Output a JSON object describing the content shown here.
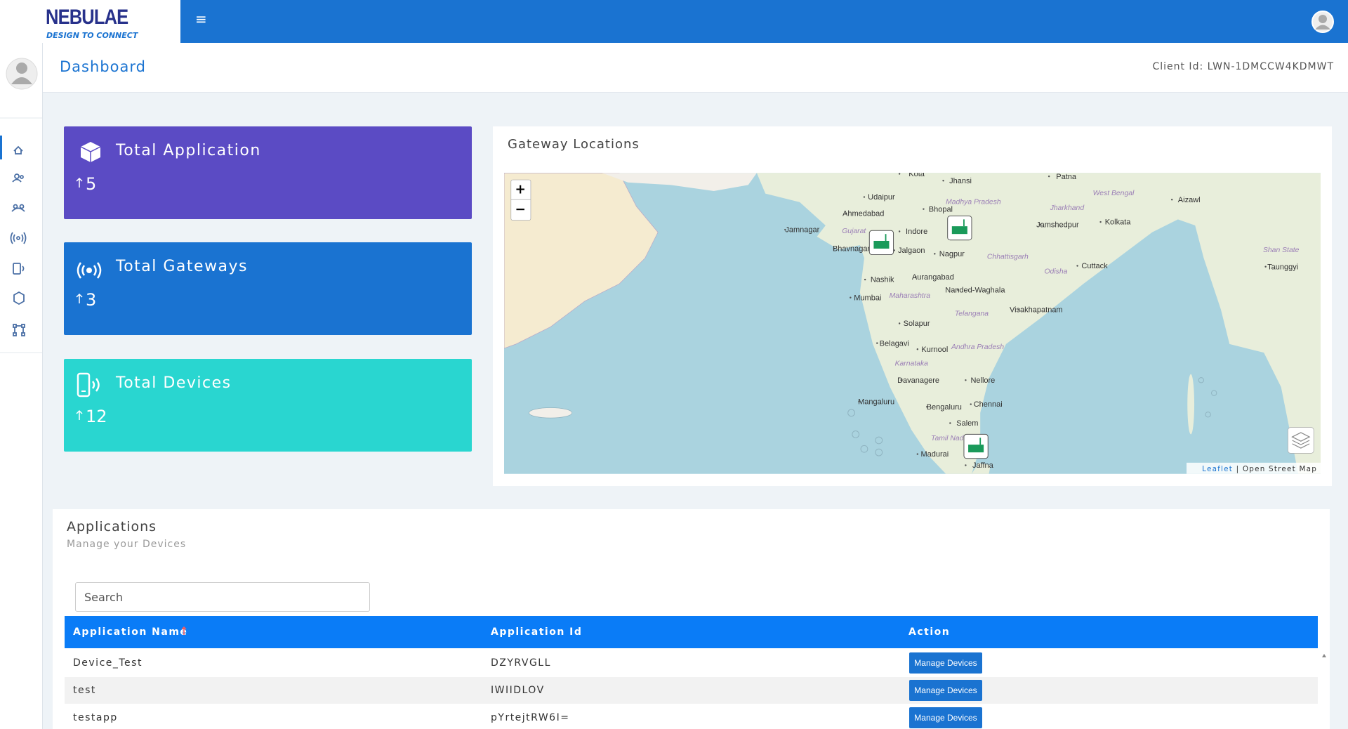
{
  "header": {
    "logo_title": "NEBULAE",
    "logo_tagline": "DESIGN TO CONNECT",
    "menu_icon": "≡"
  },
  "page": {
    "title": "Dashboard",
    "client_id": "Client Id: LWN-1DMCCW4KDMWT"
  },
  "cards": [
    {
      "title": "Total Application",
      "value": 5
    },
    {
      "title": "Total Gateways",
      "value": 3
    },
    {
      "title": "Total Devices",
      "value": 12
    }
  ],
  "map": {
    "title": "Gateway Locations",
    "zoom_in": "+",
    "zoom_out": "−",
    "attribution_link": "Leaflet",
    "attribution_text": "| Open Street Map",
    "cities": [
      "Kota",
      "Jhansi",
      "Patna",
      "Udaipur",
      "Bhopal",
      "Ahmedabad",
      "Aizawl",
      "Jamnagar",
      "Indore",
      "Jamshedpur",
      "Kolkata",
      "Bhavnagar",
      "Jalgaon",
      "Nagpur",
      "Cuttack",
      "Taunggyi",
      "Nashik",
      "Aurangabad",
      "Nanded-Waghala",
      "Mumbai",
      "Visakhapatnam",
      "Solapur",
      "Belagavi",
      "Kurnool",
      "Davanagere",
      "Nellore",
      "Mangaluru",
      "Bengaluru",
      "Chennai",
      "Salem",
      "Madurai",
      "Jaffna"
    ],
    "regions": [
      "Madhya Pradesh",
      "Jharkhand",
      "West Bengal",
      "Gujarat",
      "Chhattisgarh",
      "Odisha",
      "Shan State",
      "Maharashtra",
      "Telangana",
      "Andhra Pradesh",
      "Karnataka",
      "Tamil Nadu"
    ]
  },
  "applications": {
    "title": "Applications",
    "subtitle": "Manage your Devices",
    "search_placeholder": "Search",
    "columns": [
      "Application Name",
      "Application Id",
      "Action"
    ],
    "rows": [
      [
        "Device_Test",
        "DZYRVGLL",
        "Manage Devices"
      ],
      [
        "test",
        "IWIIDLOV",
        "Manage Devices"
      ],
      [
        "testapp",
        "pYrtejtRW6I=",
        "Manage Devices"
      ]
    ]
  }
}
